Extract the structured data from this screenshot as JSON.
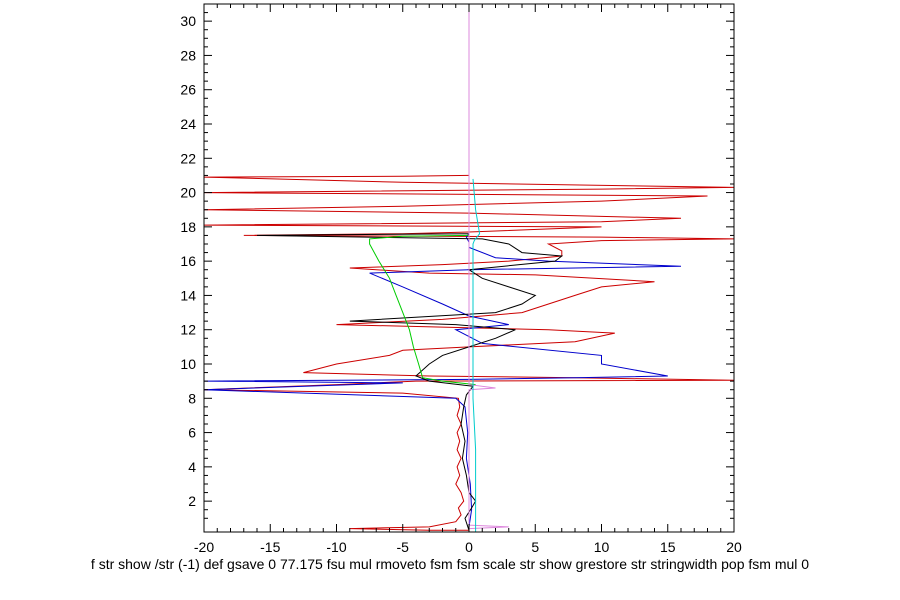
{
  "chart_data": {
    "type": "line",
    "title": "",
    "xlabel": "f str show /str (-1) def gsave 0 77.175 fsu mul rmoveto fsm fsm scale str show grestore str stringwidth pop fsm mul 0",
    "ylabel": "",
    "xlim": [
      -20,
      20
    ],
    "ylim": [
      0.2,
      31
    ],
    "grid": false,
    "x_ticks": [
      -20,
      -15,
      -10,
      -5,
      0,
      5,
      10,
      15,
      20
    ],
    "y_ticks": [
      2,
      4,
      6,
      8,
      10,
      12,
      14,
      16,
      18,
      20,
      22,
      24,
      26,
      28,
      30
    ],
    "series": [
      {
        "color": "#cc0000",
        "points": [
          [
            0,
            0.3
          ],
          [
            -3,
            0.3
          ],
          [
            -9,
            0.4
          ],
          [
            -3,
            0.5
          ],
          [
            -1,
            0.8
          ],
          [
            -0.6,
            1.2
          ],
          [
            -0.8,
            1.6
          ],
          [
            -0.4,
            2.0
          ],
          [
            -0.6,
            2.5
          ],
          [
            -1.0,
            3.0
          ],
          [
            -0.7,
            3.5
          ],
          [
            -0.9,
            4.0
          ],
          [
            -0.6,
            4.5
          ],
          [
            -0.9,
            5.0
          ],
          [
            -0.7,
            5.5
          ],
          [
            -0.9,
            6.0
          ],
          [
            -0.6,
            6.5
          ],
          [
            -0.9,
            7.0
          ],
          [
            -0.7,
            7.5
          ],
          [
            -0.8,
            8.0
          ],
          [
            -5,
            8.3
          ],
          [
            -20,
            8.5
          ],
          [
            -10,
            8.8
          ],
          [
            -4,
            9.0
          ],
          [
            20,
            9.05
          ],
          [
            8,
            9.2
          ],
          [
            -3,
            9.3
          ],
          [
            -12.5,
            9.5
          ],
          [
            -10,
            10
          ],
          [
            -6,
            10.5
          ],
          [
            -5,
            10.8
          ],
          [
            0,
            11.0
          ],
          [
            8,
            11.3
          ],
          [
            11,
            11.8
          ],
          [
            6,
            12.0
          ],
          [
            -10,
            12.3
          ],
          [
            -2,
            12.6
          ],
          [
            4,
            13.0
          ],
          [
            6,
            13.5
          ],
          [
            8,
            14.0
          ],
          [
            10,
            14.5
          ],
          [
            14,
            14.8
          ],
          [
            5,
            15.2
          ],
          [
            -3,
            15.3
          ],
          [
            -9,
            15.6
          ],
          [
            -2,
            15.8
          ],
          [
            3,
            16.0
          ],
          [
            7,
            16.3
          ],
          [
            7,
            16.6
          ],
          [
            6,
            17.0
          ],
          [
            10,
            17.2
          ],
          [
            20,
            17.3
          ],
          [
            10,
            17.4
          ],
          [
            -17,
            17.5
          ],
          [
            -5,
            17.6
          ],
          [
            0,
            17.7
          ],
          [
            10,
            18.0
          ],
          [
            -20,
            18.1
          ],
          [
            10,
            18.3
          ],
          [
            16,
            18.5
          ],
          [
            0,
            18.8
          ],
          [
            -20,
            19.0
          ],
          [
            -5,
            19.2
          ],
          [
            10,
            19.5
          ],
          [
            18,
            19.8
          ],
          [
            -20,
            20.0
          ],
          [
            10,
            20.2
          ],
          [
            20,
            20.3
          ],
          [
            -5,
            20.6
          ],
          [
            -20,
            20.9
          ],
          [
            -5,
            20.95
          ],
          [
            0,
            21.0
          ]
        ]
      },
      {
        "color": "#0000cc",
        "points": [
          [
            0,
            0.5
          ],
          [
            0.2,
            1.5
          ],
          [
            0.1,
            3.0
          ],
          [
            -0.2,
            4.5
          ],
          [
            -0.1,
            6.0
          ],
          [
            -0.3,
            7.5
          ],
          [
            -1,
            8.0
          ],
          [
            -20,
            8.5
          ],
          [
            -5,
            8.9
          ],
          [
            -20,
            9.0
          ],
          [
            0,
            9.1
          ],
          [
            8,
            9.2
          ],
          [
            15,
            9.3
          ],
          [
            10,
            10.0
          ],
          [
            10,
            10.5
          ],
          [
            1,
            11.2
          ],
          [
            -1,
            12.0
          ],
          [
            3,
            12.3
          ],
          [
            0,
            12.8
          ],
          [
            -2,
            13.5
          ],
          [
            -5,
            14.5
          ],
          [
            -7.5,
            15.3
          ],
          [
            0,
            15.5
          ],
          [
            16,
            15.7
          ],
          [
            6,
            16.0
          ],
          [
            2,
            16.2
          ],
          [
            0,
            16.8
          ],
          [
            0,
            17.1
          ],
          [
            -0.2,
            17.4
          ],
          [
            0,
            17.6
          ],
          [
            0,
            31
          ]
        ]
      },
      {
        "color": "#000000",
        "points": [
          [
            0,
            0.3
          ],
          [
            -0.3,
            1.0
          ],
          [
            0.2,
            1.6
          ],
          [
            0.5,
            2.0
          ],
          [
            0,
            2.5
          ],
          [
            -0.2,
            3.5
          ],
          [
            -0.5,
            4.5
          ],
          [
            -0.3,
            5.5
          ],
          [
            -0.6,
            6.5
          ],
          [
            -0.4,
            7.5
          ],
          [
            -0.2,
            8.2
          ],
          [
            0.3,
            8.7
          ],
          [
            -3,
            9.0
          ],
          [
            -4,
            9.3
          ],
          [
            -3,
            10.0
          ],
          [
            -2,
            10.5
          ],
          [
            0,
            11.0
          ],
          [
            2,
            11.5
          ],
          [
            3.5,
            12.0
          ],
          [
            -1,
            12.3
          ],
          [
            -9,
            12.5
          ],
          [
            2,
            13.0
          ],
          [
            4,
            13.5
          ],
          [
            5,
            14.0
          ],
          [
            3,
            14.5
          ],
          [
            1,
            15.0
          ],
          [
            0,
            15.5
          ],
          [
            6.5,
            16.0
          ],
          [
            7,
            16.3
          ],
          [
            4,
            16.5
          ],
          [
            3,
            17.0
          ],
          [
            1,
            17.3
          ],
          [
            -16,
            17.5
          ],
          [
            0,
            17.6
          ]
        ]
      },
      {
        "color": "#00cc00",
        "points": [
          [
            0.5,
            8.8
          ],
          [
            -2,
            9.0
          ],
          [
            -3.5,
            9.2
          ],
          [
            -3.8,
            10.0
          ],
          [
            -4.2,
            11.0
          ],
          [
            -4.5,
            12.0
          ],
          [
            -5,
            13.0
          ],
          [
            -5.5,
            14.0
          ],
          [
            -6,
            15.0
          ],
          [
            -6.8,
            16.0
          ],
          [
            -7.5,
            17.0
          ],
          [
            -7.5,
            17.3
          ],
          [
            -5,
            17.45
          ],
          [
            0,
            17.5
          ]
        ]
      },
      {
        "color": "#dd88dd",
        "points": [
          [
            0,
            0.3
          ],
          [
            0,
            0.4
          ],
          [
            3,
            0.5
          ],
          [
            0,
            0.6
          ],
          [
            0,
            8.5
          ],
          [
            2,
            8.6
          ],
          [
            0,
            8.8
          ],
          [
            0,
            31
          ]
        ]
      },
      {
        "color": "#00cccc",
        "points": [
          [
            0.5,
            0.2
          ],
          [
            0.5,
            5
          ],
          [
            0.3,
            8.0
          ],
          [
            0.3,
            12.0
          ],
          [
            0.3,
            15.0
          ],
          [
            0.3,
            17.0
          ],
          [
            0.4,
            17.2
          ],
          [
            0.8,
            17.6
          ],
          [
            0.5,
            19
          ],
          [
            0.3,
            20.8
          ]
        ]
      }
    ]
  }
}
